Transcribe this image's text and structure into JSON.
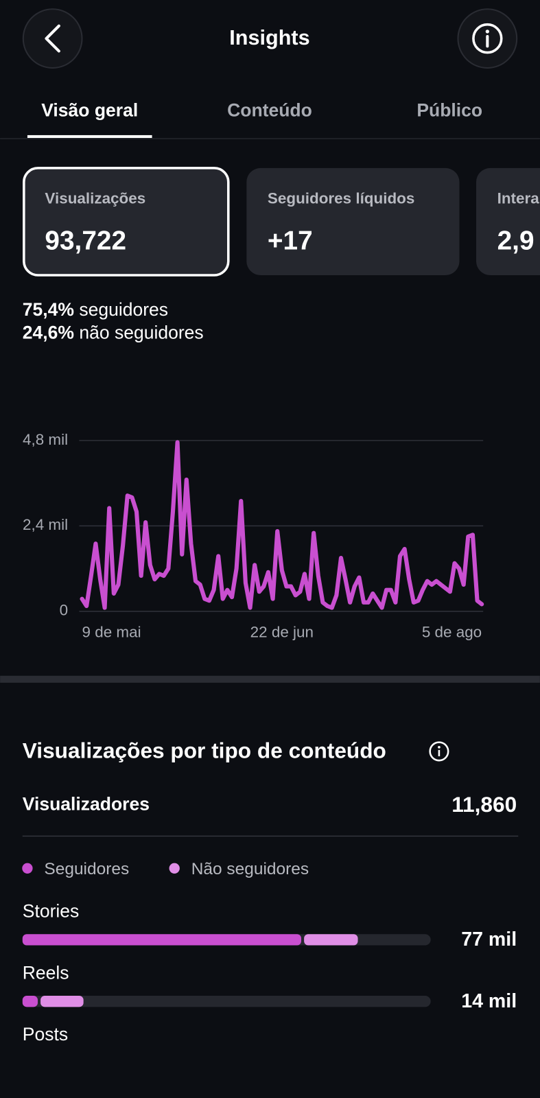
{
  "header": {
    "title": "Insights"
  },
  "tabs": [
    "Visão geral",
    "Conteúdo",
    "Público"
  ],
  "active_tab": 0,
  "metric_cards": [
    {
      "label": "Visualizações",
      "value": "93,722"
    },
    {
      "label": "Seguidores líquidos",
      "value": "+17"
    },
    {
      "label": "Intera",
      "value": "2,9"
    }
  ],
  "selected_card": 0,
  "audience_split": [
    {
      "share": "75,4%",
      "label": "seguidores"
    },
    {
      "share": "24,6%",
      "label": "não seguidores"
    }
  ],
  "viewers": {
    "label": "Visualizadores",
    "value": "11,860"
  },
  "chart_data": [
    {
      "type": "line",
      "color": "#c94fd0",
      "categories": [
        "9 de mai",
        null,
        null,
        null,
        null,
        null,
        null,
        null,
        null,
        null,
        null,
        null,
        null,
        null,
        null,
        null,
        null,
        null,
        null,
        null,
        null,
        null,
        null,
        null,
        null,
        null,
        null,
        null,
        null,
        null,
        null,
        null,
        null,
        null,
        null,
        null,
        null,
        null,
        null,
        null,
        null,
        null,
        null,
        null,
        "22 de jun",
        null,
        null,
        null,
        null,
        null,
        null,
        null,
        null,
        null,
        null,
        null,
        null,
        null,
        null,
        null,
        null,
        null,
        null,
        null,
        null,
        null,
        null,
        null,
        null,
        null,
        null,
        null,
        null,
        null,
        null,
        null,
        null,
        null,
        null,
        null,
        null,
        null,
        null,
        null,
        null,
        null,
        null,
        null,
        "5 de ago"
      ],
      "values": [
        350,
        150,
        1000,
        1900,
        900,
        100,
        2900,
        500,
        750,
        1850,
        3250,
        3200,
        2800,
        1000,
        2500,
        1300,
        900,
        1050,
        1000,
        1200,
        2800,
        4750,
        1600,
        3700,
        1900,
        850,
        750,
        350,
        300,
        600,
        1550,
        350,
        600,
        400,
        1200,
        3100,
        800,
        100,
        1300,
        550,
        700,
        1100,
        350,
        2250,
        1150,
        700,
        700,
        450,
        550,
        1050,
        350,
        2200,
        1000,
        250,
        150,
        100,
        450,
        1500,
        900,
        250,
        700,
        950,
        250,
        250,
        500,
        300,
        100,
        600,
        600,
        250,
        1550,
        1750,
        900,
        250,
        300,
        600,
        850,
        750,
        850,
        750,
        650,
        550,
        1350,
        1200,
        750,
        2100,
        2150,
        300,
        200
      ],
      "ylim": [
        0,
        4800
      ],
      "yticks": [
        {
          "value": 4800,
          "label": "4,8 mil"
        },
        {
          "value": 2400,
          "label": "2,4 mil"
        },
        0
      ],
      "grid": true
    },
    {
      "type": "stacked-hbar",
      "title": "Visualizações por tipo de conteúdo",
      "categories": [
        "Stories",
        "Reels",
        "Posts"
      ],
      "series": [
        {
          "name": "Seguidores",
          "color": "#c94fd0",
          "values": [
            64,
            3.5,
            null
          ]
        },
        {
          "name": "Não seguidores",
          "color": "#e08ee6",
          "values": [
            13,
            10.5,
            null
          ]
        }
      ],
      "total_labels": [
        "77 mil",
        "14 mil",
        null
      ],
      "xlim": [
        0,
        93.722
      ]
    }
  ]
}
